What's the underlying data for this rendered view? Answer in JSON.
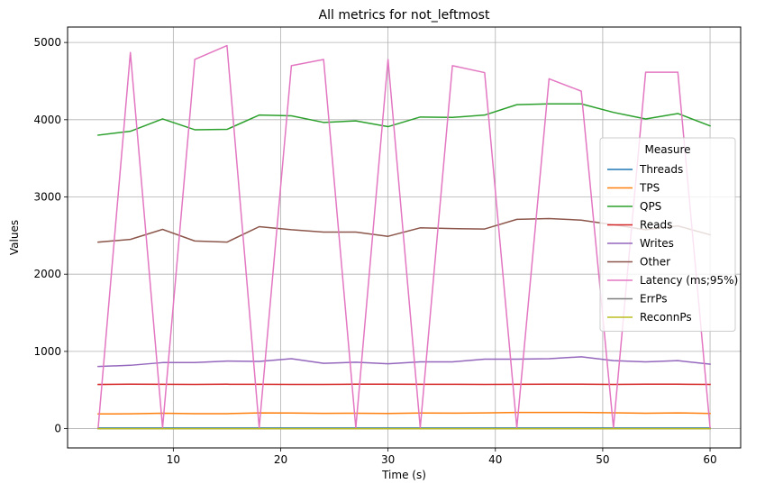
{
  "chart_data": {
    "type": "line",
    "title": "All metrics for not_leftmost",
    "xlabel": "Time (s)",
    "ylabel": "Values",
    "xlim": [
      0.15,
      62.85
    ],
    "ylim": [
      -250,
      5200
    ],
    "xticks": [
      10,
      20,
      30,
      40,
      50,
      60
    ],
    "yticks": [
      0,
      1000,
      2000,
      3000,
      4000,
      5000
    ],
    "grid": true,
    "legend": {
      "title": "Measure",
      "placement": "center-right"
    },
    "x": [
      3,
      6,
      9,
      12,
      15,
      18,
      21,
      24,
      27,
      30,
      33,
      36,
      39,
      42,
      45,
      48,
      51,
      54,
      57,
      60
    ],
    "series": [
      {
        "name": "Threads",
        "color": "#1f77b4",
        "values": [
          8,
          8,
          8,
          8,
          8,
          8,
          8,
          8,
          8,
          8,
          8,
          8,
          8,
          8,
          8,
          8,
          8,
          8,
          8,
          8
        ]
      },
      {
        "name": "TPS",
        "color": "#ff7f0e",
        "values": [
          190,
          192,
          200,
          193,
          194,
          203,
          202,
          198,
          199,
          196,
          202,
          201,
          203,
          210,
          210,
          210,
          205,
          200,
          204,
          196
        ]
      },
      {
        "name": "QPS",
        "color": "#2ca02c",
        "values": [
          3800,
          3850,
          4010,
          3870,
          3875,
          4060,
          4050,
          3965,
          3985,
          3910,
          4035,
          4030,
          4060,
          4195,
          4205,
          4205,
          4095,
          4010,
          4080,
          3920
        ]
      },
      {
        "name": "Reads",
        "color": "#d62728",
        "values": [
          572,
          576,
          574,
          572,
          575,
          574,
          573,
          572,
          575,
          575,
          574,
          574,
          573,
          574,
          576,
          576,
          573,
          575,
          575,
          573
        ]
      },
      {
        "name": "Writes",
        "color": "#9467bd",
        "values": [
          805,
          820,
          855,
          855,
          875,
          870,
          905,
          845,
          860,
          840,
          865,
          865,
          900,
          900,
          905,
          930,
          880,
          865,
          880,
          835
        ]
      },
      {
        "name": "Other",
        "color": "#8c564b",
        "values": [
          2415,
          2450,
          2580,
          2430,
          2415,
          2615,
          2575,
          2545,
          2545,
          2490,
          2600,
          2590,
          2585,
          2710,
          2720,
          2700,
          2640,
          2575,
          2625,
          2510
        ]
      },
      {
        "name": "Latency (ms;95%)",
        "color": "#e377c2",
        "values": [
          10,
          4870,
          10,
          4780,
          4960,
          10,
          4700,
          4780,
          10,
          4780,
          10,
          4700,
          4610,
          10,
          4530,
          4370,
          10,
          4615,
          4615,
          10
        ]
      },
      {
        "name": "ErrPs",
        "color": "#7f7f7f",
        "values": [
          0,
          0,
          0,
          0,
          0,
          0,
          0,
          0,
          0,
          0,
          0,
          0,
          0,
          0,
          0,
          0,
          0,
          0,
          0,
          0
        ]
      },
      {
        "name": "ReconnPs",
        "color": "#bcbd22",
        "values": [
          0,
          0,
          0,
          0,
          0,
          0,
          0,
          0,
          0,
          0,
          0,
          0,
          0,
          0,
          0,
          0,
          0,
          0,
          0,
          0
        ]
      }
    ]
  }
}
